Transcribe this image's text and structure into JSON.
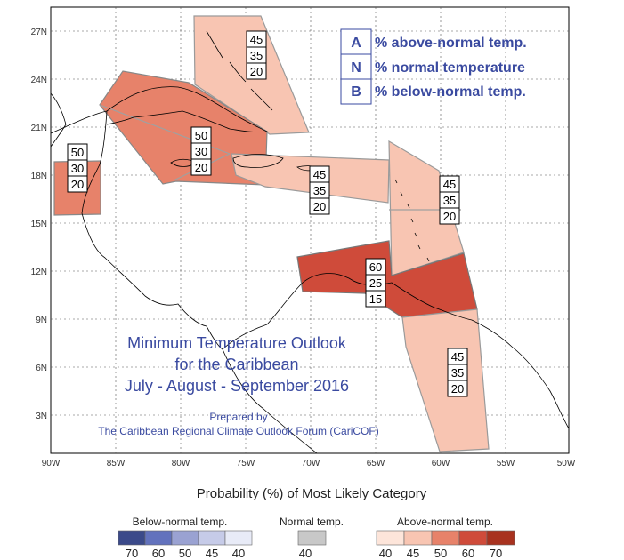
{
  "map": {
    "lat_ticks": [
      "27N",
      "24N",
      "21N",
      "18N",
      "15N",
      "12N",
      "9N",
      "6N",
      "3N"
    ],
    "lon_ticks": [
      "90W",
      "85W",
      "80W",
      "75W",
      "70W",
      "65W",
      "60W",
      "55W",
      "50W"
    ]
  },
  "category_legend": [
    {
      "key": "A",
      "description": "% above-normal temp."
    },
    {
      "key": "N",
      "description": "% normal temperature"
    },
    {
      "key": "B",
      "description": "% below-normal temp."
    }
  ],
  "regions": [
    {
      "name": "bahamas",
      "above": "45",
      "normal": "35",
      "below": "20",
      "color": "#f8c5b2"
    },
    {
      "name": "cuba-jamaica",
      "above": "50",
      "normal": "30",
      "below": "20",
      "color": "#e7826a"
    },
    {
      "name": "belize",
      "above": "50",
      "normal": "30",
      "below": "20",
      "color": "#e7826a"
    },
    {
      "name": "hispaniola-puerto-rico",
      "above": "45",
      "normal": "35",
      "below": "20",
      "color": "#f8c5b2"
    },
    {
      "name": "lesser-antilles",
      "above": "45",
      "normal": "35",
      "below": "20",
      "color": "#f8c5b2"
    },
    {
      "name": "southern-caribbean",
      "above": "60",
      "normal": "25",
      "below": "15",
      "color": "#cf4b3a"
    },
    {
      "name": "guianas",
      "above": "45",
      "normal": "35",
      "below": "20",
      "color": "#f8c5b2"
    }
  ],
  "title": {
    "line1": "Minimum Temperature Outlook",
    "line2": "for the Caribbean",
    "line3": "July - August - September 2016"
  },
  "credit": {
    "line1": "Prepared by",
    "line2": "The Caribbean Regional Climate Outlook Forum (CariCOF)"
  },
  "colorbar": {
    "title": "Probability (%) of Most Likely Category",
    "groups": [
      {
        "label": "Below-normal temp.",
        "colors": [
          "#3b4a8a",
          "#6272bd",
          "#9aa2d2",
          "#c6cbe8",
          "#e8ebf7"
        ],
        "ticks": [
          "70",
          "60",
          "50",
          "45",
          "40"
        ]
      },
      {
        "label": "Normal temp.",
        "colors": [
          "#c8c8c8"
        ],
        "ticks": [
          "40"
        ]
      },
      {
        "label": "Above-normal temp.",
        "colors": [
          "#fde5da",
          "#f8c5b2",
          "#e7826a",
          "#cf4b3a",
          "#a8321f"
        ],
        "ticks": [
          "40",
          "45",
          "50",
          "60",
          "70"
        ]
      }
    ]
  }
}
